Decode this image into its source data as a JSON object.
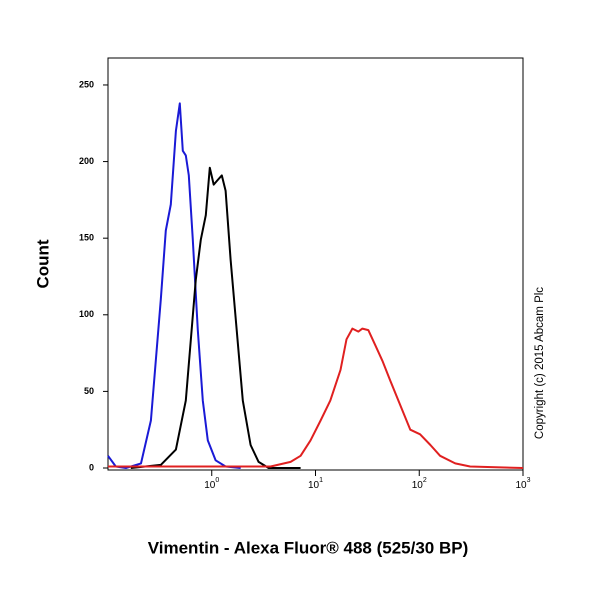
{
  "chart_data": {
    "type": "line",
    "y_label": "Count",
    "x_label": "Vimentin - Alexa Fluor® 488 (525/30 BP)",
    "copyright": "Copyright (c) 2015 Abcam Plc",
    "x_log_scale": true,
    "xlim": [
      0.1,
      1000
    ],
    "ylim": [
      -1.3,
      267.6
    ],
    "xticks": [
      {
        "value": 1,
        "label": "10",
        "sup": "0"
      },
      {
        "value": 10,
        "label": "10",
        "sup": "1"
      },
      {
        "value": 100,
        "label": "10",
        "sup": "2"
      },
      {
        "value": 1000,
        "label": "10",
        "sup": "3"
      }
    ],
    "yticks": [
      0,
      50,
      100,
      150,
      200,
      250
    ],
    "series": [
      {
        "color": "#1a1ad6",
        "x": [
          0.1,
          0.119,
          0.149,
          0.208,
          0.259,
          0.323,
          0.361,
          0.403,
          0.451,
          0.492,
          0.526,
          0.562,
          0.601,
          0.656,
          0.733,
          0.82,
          0.916,
          1.09,
          1.36,
          1.9
        ],
        "values": [
          8,
          1,
          0,
          3,
          31,
          110,
          155,
          172,
          220,
          238,
          207,
          204,
          191,
          149,
          90,
          44,
          18,
          5,
          1,
          0
        ]
      },
      {
        "color": "#000000",
        "x": [
          0.166,
          0.323,
          0.451,
          0.562,
          0.702,
          0.784,
          0.876,
          0.957,
          1.045,
          1.14,
          1.25,
          1.36,
          1.52,
          1.74,
          1.99,
          2.37,
          2.83,
          3.53,
          7.18
        ],
        "values": [
          0,
          2,
          12,
          44,
          123,
          149,
          165,
          196,
          185,
          188,
          191,
          181,
          136,
          90,
          44,
          15,
          4,
          0,
          0
        ]
      },
      {
        "color": "#e02020",
        "x": [
          0.1,
          3.69,
          5.75,
          7.18,
          8.95,
          11.2,
          13.9,
          17.4,
          19.9,
          22.7,
          25.9,
          28.3,
          32.3,
          37.8,
          44.1,
          52.6,
          65.7,
          81.9,
          102,
          128,
          159,
          222,
          309,
          1000
        ],
        "values": [
          1,
          1,
          4,
          8,
          18,
          31,
          44,
          64,
          84,
          91,
          89,
          91,
          90,
          80,
          70,
          57,
          41,
          25,
          22,
          15,
          8,
          3,
          1,
          0
        ]
      }
    ]
  }
}
